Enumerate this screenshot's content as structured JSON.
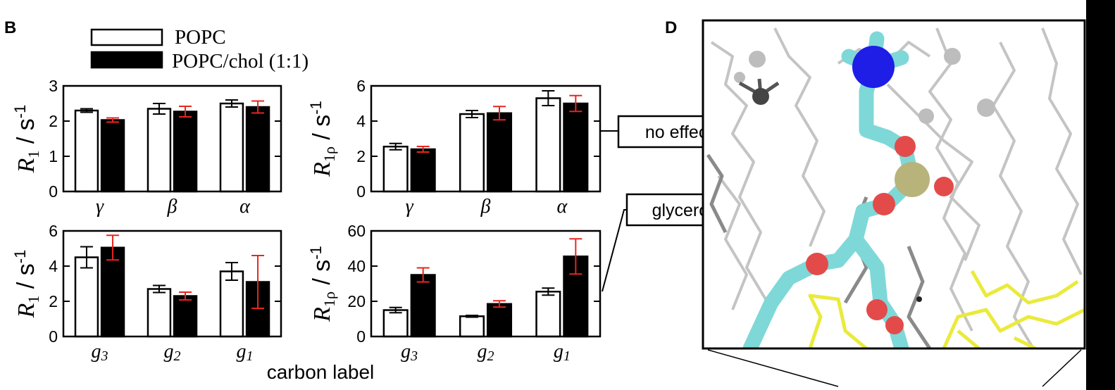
{
  "panels": {
    "left": "B",
    "right": "D"
  },
  "legend": {
    "popc": "POPC",
    "popc_chol": "POPC/chol (1:1)"
  },
  "xlabel": "carbon label",
  "callouts": {
    "choline": "no effect on choline",
    "glycerol": "glycerol slowdown"
  },
  "colors": {
    "popc_fill": "#ffffff",
    "chol_fill": "#000000",
    "err_popc": "#000000",
    "err_chol": "#e8261f"
  },
  "chart_data": [
    {
      "type": "bar",
      "ylabel_main": "R",
      "ylabel_sub": "1",
      "ylabel_unit": " / s",
      "ylabel_sup": "-1",
      "ylim": [
        0,
        3
      ],
      "yticks": [
        "0",
        "1",
        "2",
        "3"
      ],
      "categories": [
        {
          "main": "γ",
          "sub": ""
        },
        {
          "main": "β",
          "sub": ""
        },
        {
          "main": "α",
          "sub": ""
        }
      ],
      "series": [
        {
          "name": "POPC",
          "values": [
            2.3,
            2.35,
            2.5
          ],
          "errors": [
            0.05,
            0.15,
            0.1
          ]
        },
        {
          "name": "POPC/chol (1:1)",
          "values": [
            2.03,
            2.27,
            2.4
          ],
          "errors": [
            0.06,
            0.15,
            0.17
          ]
        }
      ]
    },
    {
      "type": "bar",
      "ylabel_main": "R",
      "ylabel_sub": "1ρ",
      "ylabel_unit": " / s",
      "ylabel_sup": "-1",
      "ylim": [
        0,
        6
      ],
      "yticks": [
        "0",
        "2",
        "4",
        "6"
      ],
      "categories": [
        {
          "main": "γ",
          "sub": ""
        },
        {
          "main": "β",
          "sub": ""
        },
        {
          "main": "α",
          "sub": ""
        }
      ],
      "series": [
        {
          "name": "POPC",
          "values": [
            2.55,
            4.4,
            5.3
          ],
          "errors": [
            0.18,
            0.2,
            0.42
          ]
        },
        {
          "name": "POPC/chol (1:1)",
          "values": [
            2.4,
            4.45,
            5.0
          ],
          "errors": [
            0.16,
            0.38,
            0.45
          ]
        }
      ]
    },
    {
      "type": "bar",
      "ylabel_main": "R",
      "ylabel_sub": "1",
      "ylabel_unit": " / s",
      "ylabel_sup": "-1",
      "ylim": [
        0,
        6
      ],
      "yticks": [
        "0",
        "2",
        "4",
        "6"
      ],
      "categories": [
        {
          "main": "g",
          "sub": "3"
        },
        {
          "main": "g",
          "sub": "2"
        },
        {
          "main": "g",
          "sub": "1"
        }
      ],
      "series": [
        {
          "name": "POPC",
          "values": [
            4.5,
            2.7,
            3.7
          ],
          "errors": [
            0.6,
            0.2,
            0.5
          ]
        },
        {
          "name": "POPC/chol (1:1)",
          "values": [
            5.05,
            2.3,
            3.1
          ],
          "errors": [
            0.7,
            0.22,
            1.5
          ]
        }
      ]
    },
    {
      "type": "bar",
      "ylabel_main": "R",
      "ylabel_sub": "1ρ",
      "ylabel_unit": " / s",
      "ylabel_sup": "-1",
      "ylim": [
        0,
        60
      ],
      "yticks": [
        "0",
        "20",
        "40",
        "60"
      ],
      "categories": [
        {
          "main": "g",
          "sub": "3"
        },
        {
          "main": "g",
          "sub": "2"
        },
        {
          "main": "g",
          "sub": "1"
        }
      ],
      "series": [
        {
          "name": "POPC",
          "values": [
            15.0,
            11.5,
            25.5
          ],
          "errors": [
            1.5,
            0.5,
            2.0
          ]
        },
        {
          "name": "POPC/chol (1:1)",
          "values": [
            35.0,
            18.5,
            45.5
          ],
          "errors": [
            4.0,
            1.8,
            10.0
          ]
        }
      ]
    }
  ]
}
